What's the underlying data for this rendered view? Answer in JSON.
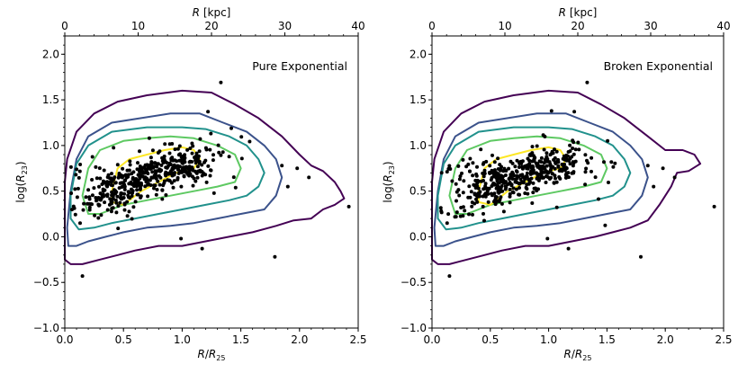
{
  "chart_data": [
    {
      "type": "scatter",
      "panel_label": "Pure Exponential",
      "xlabel_bottom": "R/R25",
      "xlabel_top": "R [kpc]",
      "ylabel": "log(R23)",
      "xlim": [
        0.0,
        2.5
      ],
      "ylim": [
        -1.0,
        2.2
      ],
      "top_xlim": [
        0,
        40
      ],
      "x_ticks": [
        "0.0",
        "0.5",
        "1.0",
        "1.5",
        "2.0",
        "2.5"
      ],
      "top_x_ticks": [
        "0",
        "10",
        "20",
        "30",
        "40"
      ],
      "y_ticks": [
        "−1.0",
        "−0.5",
        "0.0",
        "0.5",
        "1.0",
        "1.5",
        "2.0"
      ],
      "contour_levels": [
        {
          "color": "#440154",
          "points": [
            [
              0.0,
              0.6
            ],
            [
              0.02,
              0.85
            ],
            [
              0.1,
              1.15
            ],
            [
              0.25,
              1.35
            ],
            [
              0.45,
              1.48
            ],
            [
              0.7,
              1.55
            ],
            [
              1.0,
              1.6
            ],
            [
              1.25,
              1.58
            ],
            [
              1.45,
              1.45
            ],
            [
              1.65,
              1.3
            ],
            [
              1.85,
              1.1
            ],
            [
              2.0,
              0.9
            ],
            [
              2.1,
              0.78
            ],
            [
              2.2,
              0.72
            ],
            [
              2.3,
              0.6
            ],
            [
              2.35,
              0.5
            ],
            [
              2.38,
              0.42
            ],
            [
              2.3,
              0.35
            ],
            [
              2.2,
              0.3
            ],
            [
              2.1,
              0.2
            ],
            [
              1.95,
              0.18
            ],
            [
              1.8,
              0.12
            ],
            [
              1.6,
              0.05
            ],
            [
              1.4,
              0.0
            ],
            [
              1.2,
              -0.05
            ],
            [
              1.0,
              -0.1
            ],
            [
              0.8,
              -0.1
            ],
            [
              0.6,
              -0.15
            ],
            [
              0.45,
              -0.2
            ],
            [
              0.3,
              -0.25
            ],
            [
              0.15,
              -0.3
            ],
            [
              0.05,
              -0.3
            ],
            [
              0.0,
              -0.25
            ],
            [
              0.0,
              0.6
            ]
          ]
        },
        {
          "color": "#3b528b",
          "points": [
            [
              0.05,
              0.5
            ],
            [
              0.1,
              0.85
            ],
            [
              0.2,
              1.1
            ],
            [
              0.4,
              1.25
            ],
            [
              0.65,
              1.3
            ],
            [
              0.9,
              1.35
            ],
            [
              1.15,
              1.35
            ],
            [
              1.35,
              1.25
            ],
            [
              1.55,
              1.15
            ],
            [
              1.7,
              1.0
            ],
            [
              1.8,
              0.85
            ],
            [
              1.85,
              0.65
            ],
            [
              1.8,
              0.45
            ],
            [
              1.7,
              0.3
            ],
            [
              1.5,
              0.25
            ],
            [
              1.3,
              0.2
            ],
            [
              1.1,
              0.15
            ],
            [
              0.9,
              0.12
            ],
            [
              0.7,
              0.1
            ],
            [
              0.5,
              0.05
            ],
            [
              0.35,
              0.0
            ],
            [
              0.2,
              -0.05
            ],
            [
              0.1,
              -0.1
            ],
            [
              0.03,
              -0.1
            ],
            [
              0.02,
              0.1
            ],
            [
              0.05,
              0.5
            ]
          ]
        },
        {
          "color": "#21918c",
          "points": [
            [
              0.05,
              0.45
            ],
            [
              0.1,
              0.8
            ],
            [
              0.2,
              1.0
            ],
            [
              0.4,
              1.15
            ],
            [
              0.7,
              1.2
            ],
            [
              1.0,
              1.2
            ],
            [
              1.2,
              1.18
            ],
            [
              1.4,
              1.1
            ],
            [
              1.55,
              1.0
            ],
            [
              1.65,
              0.85
            ],
            [
              1.7,
              0.7
            ],
            [
              1.65,
              0.55
            ],
            [
              1.55,
              0.45
            ],
            [
              1.4,
              0.4
            ],
            [
              1.2,
              0.35
            ],
            [
              1.0,
              0.3
            ],
            [
              0.8,
              0.25
            ],
            [
              0.6,
              0.2
            ],
            [
              0.4,
              0.15
            ],
            [
              0.25,
              0.1
            ],
            [
              0.12,
              0.08
            ],
            [
              0.05,
              0.2
            ],
            [
              0.05,
              0.45
            ]
          ]
        },
        {
          "color": "#5ec962",
          "points": [
            [
              0.15,
              0.45
            ],
            [
              0.2,
              0.75
            ],
            [
              0.3,
              0.95
            ],
            [
              0.5,
              1.05
            ],
            [
              0.7,
              1.08
            ],
            [
              0.9,
              1.1
            ],
            [
              1.1,
              1.08
            ],
            [
              1.3,
              1.0
            ],
            [
              1.45,
              0.9
            ],
            [
              1.5,
              0.75
            ],
            [
              1.45,
              0.6
            ],
            [
              1.3,
              0.55
            ],
            [
              1.1,
              0.5
            ],
            [
              0.9,
              0.45
            ],
            [
              0.7,
              0.4
            ],
            [
              0.5,
              0.35
            ],
            [
              0.3,
              0.25
            ],
            [
              0.2,
              0.25
            ],
            [
              0.15,
              0.45
            ]
          ]
        },
        {
          "color": "#fde725",
          "points": [
            [
              0.4,
              0.5
            ],
            [
              0.45,
              0.75
            ],
            [
              0.55,
              0.85
            ],
            [
              0.7,
              0.9
            ],
            [
              0.85,
              0.95
            ],
            [
              1.0,
              0.98
            ],
            [
              1.1,
              0.95
            ],
            [
              1.15,
              0.85
            ],
            [
              1.1,
              0.75
            ],
            [
              0.95,
              0.7
            ],
            [
              0.8,
              0.6
            ],
            [
              0.65,
              0.5
            ],
            [
              0.5,
              0.35
            ],
            [
              0.4,
              0.38
            ],
            [
              0.4,
              0.5
            ]
          ]
        }
      ]
    },
    {
      "type": "scatter",
      "panel_label": "Broken Exponential",
      "xlabel_bottom": "R/R25",
      "xlabel_top": "R [kpc]",
      "ylabel": "log(R23)",
      "xlim": [
        0.0,
        2.5
      ],
      "ylim": [
        -1.0,
        2.2
      ],
      "top_xlim": [
        0,
        40
      ],
      "x_ticks": [
        "0.0",
        "0.5",
        "1.0",
        "1.5",
        "2.0",
        "2.5"
      ],
      "top_x_ticks": [
        "0",
        "10",
        "20",
        "30",
        "40"
      ],
      "y_ticks": [
        "−1.0",
        "−0.5",
        "0.0",
        "0.5",
        "1.0",
        "1.5",
        "2.0"
      ],
      "contour_levels": [
        {
          "color": "#440154",
          "points": [
            [
              0.0,
              0.6
            ],
            [
              0.02,
              0.85
            ],
            [
              0.1,
              1.15
            ],
            [
              0.25,
              1.35
            ],
            [
              0.45,
              1.48
            ],
            [
              0.7,
              1.55
            ],
            [
              1.0,
              1.6
            ],
            [
              1.25,
              1.58
            ],
            [
              1.45,
              1.45
            ],
            [
              1.65,
              1.3
            ],
            [
              1.85,
              1.1
            ],
            [
              2.0,
              0.95
            ],
            [
              2.15,
              0.95
            ],
            [
              2.25,
              0.9
            ],
            [
              2.3,
              0.8
            ],
            [
              2.2,
              0.72
            ],
            [
              2.1,
              0.7
            ],
            [
              2.05,
              0.55
            ],
            [
              1.95,
              0.35
            ],
            [
              1.85,
              0.18
            ],
            [
              1.7,
              0.1
            ],
            [
              1.55,
              0.05
            ],
            [
              1.4,
              0.0
            ],
            [
              1.2,
              -0.05
            ],
            [
              1.0,
              -0.1
            ],
            [
              0.8,
              -0.1
            ],
            [
              0.6,
              -0.15
            ],
            [
              0.45,
              -0.2
            ],
            [
              0.3,
              -0.25
            ],
            [
              0.15,
              -0.3
            ],
            [
              0.05,
              -0.3
            ],
            [
              0.0,
              -0.25
            ],
            [
              0.0,
              0.6
            ]
          ]
        },
        {
          "color": "#3b528b",
          "points": [
            [
              0.05,
              0.5
            ],
            [
              0.1,
              0.85
            ],
            [
              0.2,
              1.1
            ],
            [
              0.4,
              1.25
            ],
            [
              0.65,
              1.3
            ],
            [
              0.9,
              1.35
            ],
            [
              1.15,
              1.35
            ],
            [
              1.35,
              1.25
            ],
            [
              1.55,
              1.15
            ],
            [
              1.7,
              1.0
            ],
            [
              1.8,
              0.85
            ],
            [
              1.85,
              0.65
            ],
            [
              1.8,
              0.45
            ],
            [
              1.7,
              0.3
            ],
            [
              1.5,
              0.25
            ],
            [
              1.3,
              0.2
            ],
            [
              1.1,
              0.15
            ],
            [
              0.9,
              0.12
            ],
            [
              0.7,
              0.1
            ],
            [
              0.5,
              0.05
            ],
            [
              0.35,
              0.0
            ],
            [
              0.2,
              -0.05
            ],
            [
              0.1,
              -0.1
            ],
            [
              0.03,
              -0.1
            ],
            [
              0.02,
              0.1
            ],
            [
              0.05,
              0.5
            ]
          ]
        },
        {
          "color": "#21918c",
          "points": [
            [
              0.05,
              0.45
            ],
            [
              0.1,
              0.8
            ],
            [
              0.2,
              1.0
            ],
            [
              0.4,
              1.15
            ],
            [
              0.7,
              1.2
            ],
            [
              1.0,
              1.2
            ],
            [
              1.2,
              1.18
            ],
            [
              1.4,
              1.1
            ],
            [
              1.55,
              1.0
            ],
            [
              1.65,
              0.85
            ],
            [
              1.7,
              0.7
            ],
            [
              1.65,
              0.55
            ],
            [
              1.55,
              0.45
            ],
            [
              1.4,
              0.4
            ],
            [
              1.2,
              0.35
            ],
            [
              1.0,
              0.3
            ],
            [
              0.8,
              0.25
            ],
            [
              0.6,
              0.2
            ],
            [
              0.4,
              0.15
            ],
            [
              0.25,
              0.1
            ],
            [
              0.12,
              0.08
            ],
            [
              0.05,
              0.2
            ],
            [
              0.05,
              0.45
            ]
          ]
        },
        {
          "color": "#5ec962",
          "points": [
            [
              0.15,
              0.45
            ],
            [
              0.2,
              0.75
            ],
            [
              0.3,
              0.95
            ],
            [
              0.5,
              1.05
            ],
            [
              0.7,
              1.08
            ],
            [
              0.9,
              1.1
            ],
            [
              1.1,
              1.08
            ],
            [
              1.3,
              1.0
            ],
            [
              1.45,
              0.9
            ],
            [
              1.5,
              0.75
            ],
            [
              1.45,
              0.6
            ],
            [
              1.3,
              0.55
            ],
            [
              1.1,
              0.5
            ],
            [
              0.9,
              0.45
            ],
            [
              0.7,
              0.4
            ],
            [
              0.5,
              0.35
            ],
            [
              0.3,
              0.25
            ],
            [
              0.2,
              0.25
            ],
            [
              0.15,
              0.45
            ]
          ]
        },
        {
          "color": "#fde725",
          "points": [
            [
              0.4,
              0.5
            ],
            [
              0.45,
              0.75
            ],
            [
              0.55,
              0.85
            ],
            [
              0.7,
              0.9
            ],
            [
              0.85,
              0.95
            ],
            [
              1.0,
              0.98
            ],
            [
              1.1,
              0.95
            ],
            [
              1.15,
              0.85
            ],
            [
              1.1,
              0.75
            ],
            [
              0.95,
              0.7
            ],
            [
              0.8,
              0.6
            ],
            [
              0.65,
              0.5
            ],
            [
              0.5,
              0.35
            ],
            [
              0.4,
              0.38
            ],
            [
              0.4,
              0.5
            ]
          ]
        }
      ]
    }
  ]
}
